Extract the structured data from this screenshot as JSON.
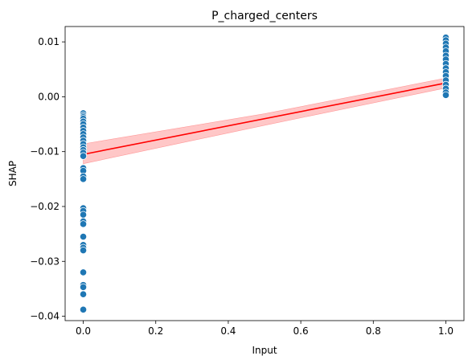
{
  "chart_data": {
    "type": "scatter",
    "title": "P_charged_centers",
    "xlabel": "Input",
    "ylabel": "SHAP",
    "xlim": [
      -0.05,
      1.05
    ],
    "ylim": [
      -0.0408,
      0.0128
    ],
    "x_ticks": [
      0.0,
      0.2,
      0.4,
      0.6,
      0.8,
      1.0
    ],
    "x_tick_labels": [
      "0.0",
      "0.2",
      "0.4",
      "0.6",
      "0.8",
      "1.0"
    ],
    "y_ticks": [
      0.01,
      0.0,
      -0.01,
      -0.02,
      -0.03,
      -0.04
    ],
    "y_tick_labels": [
      "0.01",
      "0.00",
      "−0.01",
      "−0.02",
      "−0.03",
      "−0.04"
    ],
    "grid": false,
    "legend": "none",
    "colors": {
      "points": "#1f77b4",
      "point_edge": "#ffffff",
      "regression_line": "#ff0000",
      "confidence_band": "#ff9999"
    },
    "series": [
      {
        "kind": "scatter",
        "points": [
          [
            0,
            -0.003
          ],
          [
            0,
            -0.0034
          ],
          [
            0,
            -0.0037
          ],
          [
            0,
            -0.004
          ],
          [
            0,
            -0.0045
          ],
          [
            0,
            -0.005
          ],
          [
            0,
            -0.0056
          ],
          [
            0,
            -0.0062
          ],
          [
            0,
            -0.0068
          ],
          [
            0,
            -0.0074
          ],
          [
            0,
            -0.008
          ],
          [
            0,
            -0.0086
          ],
          [
            0,
            -0.0092
          ],
          [
            0,
            -0.0097
          ],
          [
            0,
            -0.0102
          ],
          [
            0,
            -0.0108
          ],
          [
            0,
            -0.013
          ],
          [
            0,
            -0.0135
          ],
          [
            0,
            -0.0145
          ],
          [
            0,
            -0.015
          ],
          [
            0,
            -0.0203
          ],
          [
            0,
            -0.0208
          ],
          [
            0,
            -0.0215
          ],
          [
            0,
            -0.0227
          ],
          [
            0,
            -0.0232
          ],
          [
            0,
            -0.0255
          ],
          [
            0,
            -0.027
          ],
          [
            0,
            -0.0275
          ],
          [
            0,
            -0.028
          ],
          [
            0,
            -0.032
          ],
          [
            0,
            -0.0343
          ],
          [
            0,
            -0.0347
          ],
          [
            0,
            -0.036
          ],
          [
            0,
            -0.0388
          ],
          [
            1,
            0.0108
          ],
          [
            1,
            0.0103
          ],
          [
            1,
            0.0097
          ],
          [
            1,
            0.009
          ],
          [
            1,
            0.0083
          ],
          [
            1,
            0.0075
          ],
          [
            1,
            0.0068
          ],
          [
            1,
            0.006
          ],
          [
            1,
            0.0052
          ],
          [
            1,
            0.0045
          ],
          [
            1,
            0.0038
          ],
          [
            1,
            0.003
          ],
          [
            1,
            0.0022
          ],
          [
            1,
            0.0015
          ],
          [
            1,
            0.0008
          ],
          [
            1,
            0.0003
          ]
        ]
      },
      {
        "kind": "regression_line",
        "x": [
          0,
          1
        ],
        "y": [
          -0.0105,
          0.0025
        ]
      },
      {
        "kind": "confidence_band",
        "x": [
          0,
          0.5,
          1
        ],
        "lower": [
          -0.0122,
          -0.0052,
          0.0016
        ],
        "upper": [
          -0.0086,
          -0.0031,
          0.0034
        ]
      }
    ]
  }
}
